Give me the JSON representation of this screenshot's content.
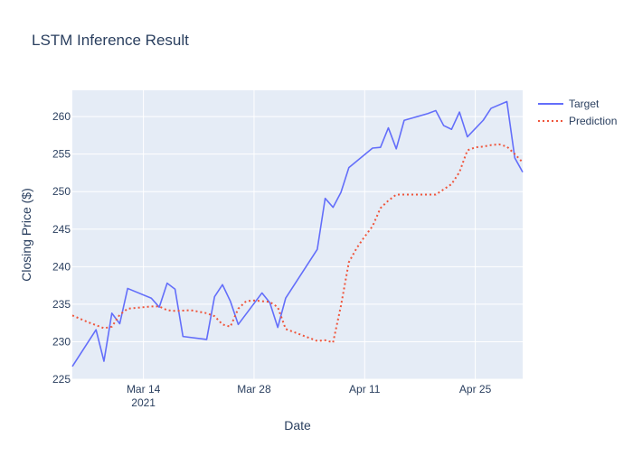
{
  "chart_data": {
    "type": "line",
    "title": "LSTM Inference Result",
    "xlabel": "Date",
    "ylabel": "Closing Price ($)",
    "xlim": [
      "2021-03-05",
      "2021-05-01"
    ],
    "ylim": [
      225,
      263.5
    ],
    "x_ticks": [
      {
        "date": "2021-03-14",
        "label": "Mar 14",
        "sublabel": "2021"
      },
      {
        "date": "2021-03-28",
        "label": "Mar 28",
        "sublabel": ""
      },
      {
        "date": "2021-04-11",
        "label": "Apr 11",
        "sublabel": ""
      },
      {
        "date": "2021-04-25",
        "label": "Apr 25",
        "sublabel": ""
      }
    ],
    "y_ticks": [
      225,
      230,
      235,
      240,
      245,
      250,
      255,
      260
    ],
    "grid": true,
    "legend_position": "top-right",
    "series": [
      {
        "name": "Target",
        "color": "#636efa",
        "style": "solid",
        "points": [
          [
            "2021-03-05",
            226.7
          ],
          [
            "2021-03-08",
            231.6
          ],
          [
            "2021-03-09",
            227.4
          ],
          [
            "2021-03-10",
            233.8
          ],
          [
            "2021-03-11",
            232.4
          ],
          [
            "2021-03-12",
            237.1
          ],
          [
            "2021-03-15",
            235.8
          ],
          [
            "2021-03-16",
            234.6
          ],
          [
            "2021-03-17",
            237.8
          ],
          [
            "2021-03-18",
            237.0
          ],
          [
            "2021-03-19",
            230.7
          ],
          [
            "2021-03-22",
            230.3
          ],
          [
            "2021-03-23",
            236.0
          ],
          [
            "2021-03-24",
            237.6
          ],
          [
            "2021-03-25",
            235.4
          ],
          [
            "2021-03-26",
            232.3
          ],
          [
            "2021-03-29",
            236.5
          ],
          [
            "2021-03-30",
            235.2
          ],
          [
            "2021-03-31",
            231.9
          ],
          [
            "2021-04-01",
            235.8
          ],
          [
            "2021-04-05",
            242.3
          ],
          [
            "2021-04-06",
            249.1
          ],
          [
            "2021-04-07",
            247.9
          ],
          [
            "2021-04-08",
            249.9
          ],
          [
            "2021-04-09",
            253.2
          ],
          [
            "2021-04-12",
            255.8
          ],
          [
            "2021-04-13",
            255.9
          ],
          [
            "2021-04-14",
            258.5
          ],
          [
            "2021-04-15",
            255.7
          ],
          [
            "2021-04-16",
            259.5
          ],
          [
            "2021-04-19",
            260.4
          ],
          [
            "2021-04-20",
            260.8
          ],
          [
            "2021-04-21",
            258.8
          ],
          [
            "2021-04-22",
            258.3
          ],
          [
            "2021-04-23",
            260.6
          ],
          [
            "2021-04-24",
            257.3
          ],
          [
            "2021-04-26",
            259.5
          ],
          [
            "2021-04-27",
            261.1
          ],
          [
            "2021-04-29",
            262.0
          ],
          [
            "2021-04-30",
            254.5
          ],
          [
            "2021-05-01",
            252.6
          ]
        ]
      },
      {
        "name": "Prediction",
        "color": "#ef553b",
        "style": "dotted",
        "points": [
          [
            "2021-03-05",
            233.5
          ],
          [
            "2021-03-07",
            232.6
          ],
          [
            "2021-03-09",
            231.8
          ],
          [
            "2021-03-10",
            232.0
          ],
          [
            "2021-03-11",
            233.6
          ],
          [
            "2021-03-12",
            234.4
          ],
          [
            "2021-03-13",
            234.5
          ],
          [
            "2021-03-15",
            234.7
          ],
          [
            "2021-03-16",
            234.7
          ],
          [
            "2021-03-17",
            234.2
          ],
          [
            "2021-03-18",
            234.1
          ],
          [
            "2021-03-20",
            234.2
          ],
          [
            "2021-03-22",
            233.8
          ],
          [
            "2021-03-23",
            233.4
          ],
          [
            "2021-03-24",
            232.3
          ],
          [
            "2021-03-25",
            232.0
          ],
          [
            "2021-03-26",
            234.4
          ],
          [
            "2021-03-27",
            235.4
          ],
          [
            "2021-03-28",
            235.5
          ],
          [
            "2021-03-29",
            235.4
          ],
          [
            "2021-03-30",
            235.3
          ],
          [
            "2021-03-31",
            234.6
          ],
          [
            "2021-04-01",
            231.7
          ],
          [
            "2021-04-03",
            230.9
          ],
          [
            "2021-04-05",
            230.1
          ],
          [
            "2021-04-06",
            230.2
          ],
          [
            "2021-04-07",
            229.9
          ],
          [
            "2021-04-08",
            234.8
          ],
          [
            "2021-04-09",
            240.6
          ],
          [
            "2021-04-10",
            242.5
          ],
          [
            "2021-04-11",
            244.0
          ],
          [
            "2021-04-12",
            245.4
          ],
          [
            "2021-04-13",
            247.8
          ],
          [
            "2021-04-14",
            248.8
          ],
          [
            "2021-04-15",
            249.6
          ],
          [
            "2021-04-16",
            249.6
          ],
          [
            "2021-04-18",
            249.6
          ],
          [
            "2021-04-20",
            249.6
          ],
          [
            "2021-04-22",
            251.0
          ],
          [
            "2021-04-23",
            252.6
          ],
          [
            "2021-04-24",
            255.5
          ],
          [
            "2021-04-25",
            255.9
          ],
          [
            "2021-04-26",
            256.0
          ],
          [
            "2021-04-27",
            256.2
          ],
          [
            "2021-04-28",
            256.3
          ],
          [
            "2021-04-29",
            256.0
          ],
          [
            "2021-04-30",
            255.0
          ],
          [
            "2021-05-01",
            253.9
          ]
        ]
      }
    ]
  }
}
